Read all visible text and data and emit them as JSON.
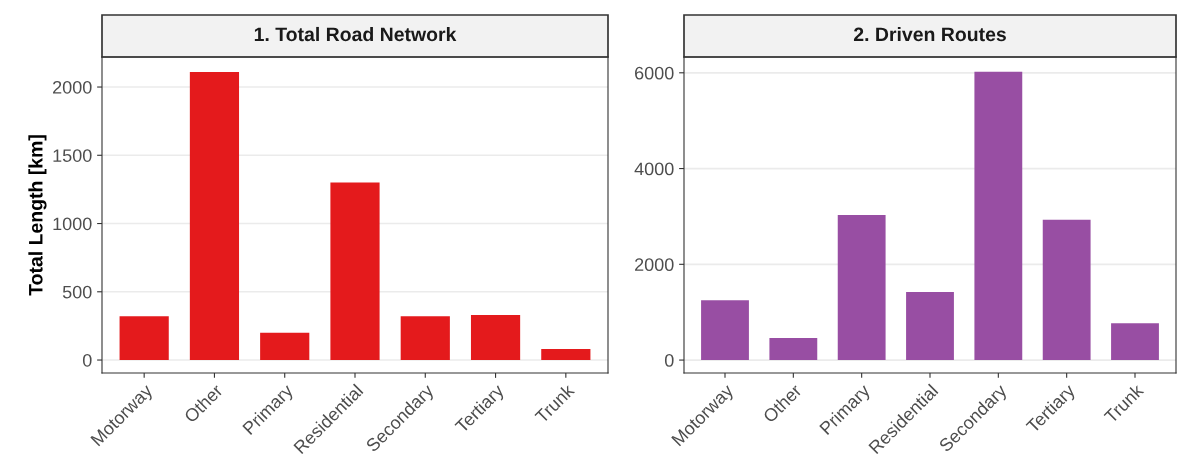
{
  "chart_data": [
    {
      "type": "bar",
      "title": "1. Total Road Network",
      "ylabel": "Total Length [km]",
      "categories": [
        "Motorway",
        "Other",
        "Primary",
        "Residential",
        "Secondary",
        "Tertiary",
        "Trunk"
      ],
      "values": [
        320,
        2110,
        200,
        1300,
        320,
        330,
        80
      ],
      "color": "#e41a1c",
      "ylim": [
        -95,
        2220
      ],
      "yticks": [
        0,
        500,
        1000,
        1500,
        2000
      ],
      "grid": "y"
    },
    {
      "type": "bar",
      "title": "2. Driven Routes",
      "categories": [
        "Motorway",
        "Other",
        "Primary",
        "Residential",
        "Secondary",
        "Tertiary",
        "Trunk"
      ],
      "values": [
        1250,
        460,
        3030,
        1420,
        6020,
        2930,
        770
      ],
      "color": "#984ea3",
      "ylim": [
        -270,
        6330
      ],
      "yticks": [
        0,
        2000,
        4000,
        6000
      ],
      "grid": "y"
    }
  ]
}
